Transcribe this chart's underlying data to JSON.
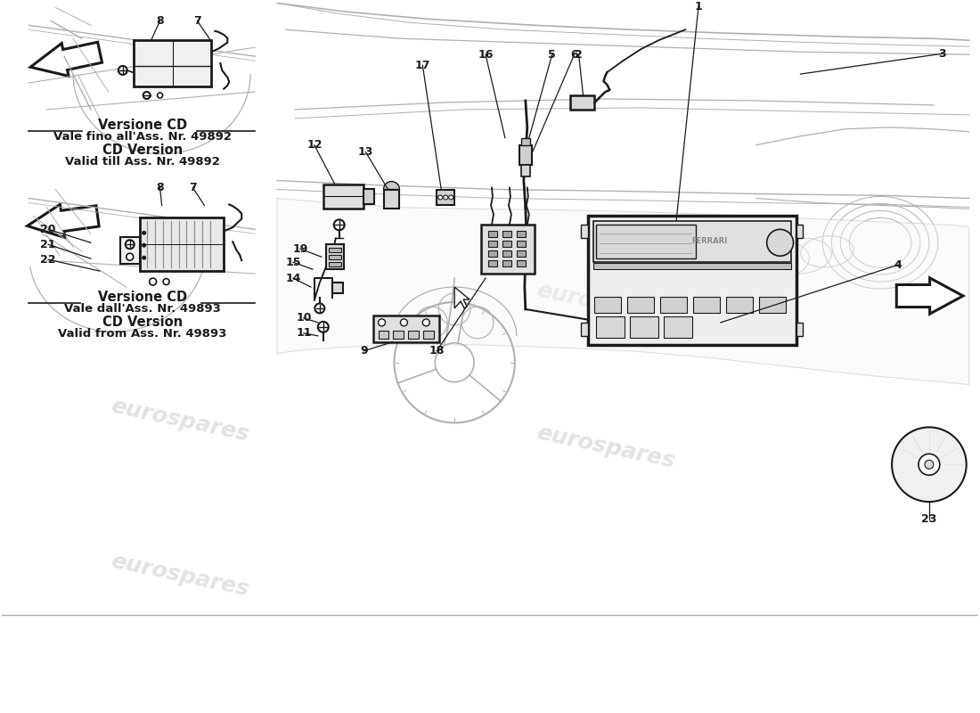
{
  "background_color": "#ffffff",
  "line_color": "#1a1a1a",
  "light_line_color": "#aaaaaa",
  "body_line_color": "#b0b0b0",
  "text_top_label1": "Versione CD",
  "text_top_label2": "Vale fino all'Ass. Nr. 49892",
  "text_top_label3": "CD Version",
  "text_top_label4": "Valid till Ass. Nr. 49892",
  "text_bottom_label1": "Versione CD",
  "text_bottom_label2": "Vale dall'Ass. Nr. 49893",
  "text_bottom_label3": "CD Version",
  "text_bottom_label4": "Valid from Ass. Nr. 49893",
  "watermark_text": "eurospares",
  "watermark_color": "#cccccc"
}
